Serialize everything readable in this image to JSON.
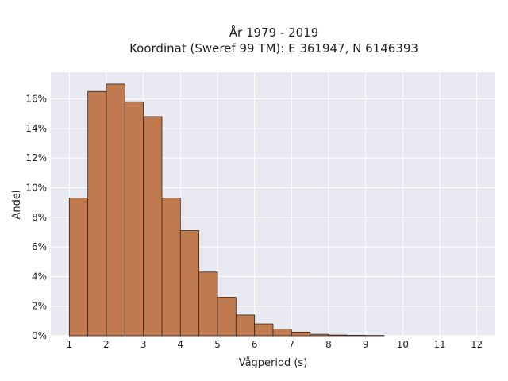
{
  "chart_data": {
    "type": "bar",
    "title": "År 1979 - 2019",
    "subtitle": "Koordinat (Sweref 99 TM): E 361947, N 6146393",
    "xlabel": "Vågperiod (s)",
    "ylabel": "Andel",
    "bin_width": 0.5,
    "bin_starts": [
      1.0,
      1.5,
      2.0,
      2.5,
      3.0,
      3.5,
      4.0,
      4.5,
      5.0,
      5.5,
      6.0,
      6.5,
      7.0,
      7.5,
      8.0,
      8.5,
      9.0
    ],
    "values": [
      9.3,
      16.5,
      17.0,
      15.8,
      14.8,
      9.3,
      7.1,
      4.3,
      2.6,
      1.4,
      0.8,
      0.45,
      0.25,
      0.1,
      0.05,
      0.03,
      0.02
    ],
    "xlim": [
      0.5,
      12.5
    ],
    "ylim": [
      0,
      17.8
    ],
    "x_ticks": [
      "1",
      "2",
      "3",
      "4",
      "5",
      "6",
      "7",
      "8",
      "9",
      "10",
      "11",
      "12"
    ],
    "y_ticks": [
      "0%",
      "2%",
      "4%",
      "6%",
      "8%",
      "10%",
      "12%",
      "14%",
      "16%"
    ],
    "grid": true,
    "colors": {
      "bar_fill": "#c07a50",
      "bar_edge": "#3a2418",
      "plot_bg": "#e9e9f1",
      "grid": "#ffffff"
    }
  }
}
